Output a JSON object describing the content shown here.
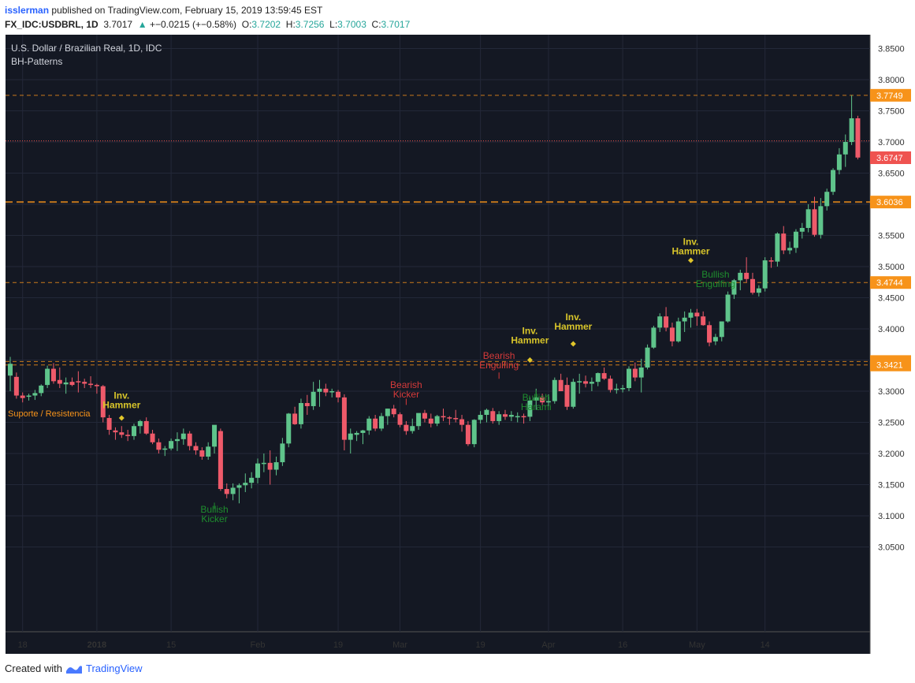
{
  "header": {
    "user": "isslerman",
    "published": "published on TradingView.com, February 15, 2019 13:59:45 EST",
    "symbol": "FX_IDC:USDBRL, 1D",
    "last": "3.7017",
    "change": "+−0.0215 (+−0.58%)",
    "o_label": "O:",
    "o": "3.7202",
    "h_label": "H:",
    "h": "3.7256",
    "l_label": "L:",
    "l": "3.7003",
    "c_label": "C:",
    "c": "3.7017"
  },
  "footer": {
    "created_with": "Created with",
    "brand": "TradingView"
  },
  "chart_data": {
    "type": "candlestick",
    "title": "U.S. Dollar / Brazilian Real, 1D, IDC",
    "subtitle": "BH-Patterns",
    "ylim": [
      3.03,
      3.86
    ],
    "yticks": [
      3.05,
      3.1,
      3.15,
      3.2,
      3.25,
      3.3,
      3.35,
      3.4,
      3.45,
      3.5,
      3.55,
      3.6,
      3.65,
      3.7,
      3.75,
      3.8,
      3.85
    ],
    "ytick_labels": [
      "3.0500",
      "3.1000",
      "3.1500",
      "3.2000",
      "3.2500",
      "3.3000",
      "3.3500",
      "3.4000",
      "3.4500",
      "3.5000",
      "3.5500",
      "3.6000",
      "3.6500",
      "3.7000",
      "3.7500",
      "3.8000",
      "3.8500"
    ],
    "xticks": [
      {
        "i": 2,
        "label": "18",
        "bold": false
      },
      {
        "i": 14,
        "label": "2018",
        "bold": true
      },
      {
        "i": 26,
        "label": "15",
        "bold": false
      },
      {
        "i": 40,
        "label": "Feb",
        "bold": false
      },
      {
        "i": 53,
        "label": "19",
        "bold": false
      },
      {
        "i": 63,
        "label": "Mar",
        "bold": false
      },
      {
        "i": 76,
        "label": "19",
        "bold": false
      },
      {
        "i": 87,
        "label": "Apr",
        "bold": false
      },
      {
        "i": 99,
        "label": "16",
        "bold": false
      },
      {
        "i": 111,
        "label": "May",
        "bold": false
      },
      {
        "i": 122,
        "label": "14",
        "bold": false
      }
    ],
    "price_lines": [
      {
        "value": 3.7749,
        "label": "3.7749",
        "style": "dashed",
        "color": "#f7931a"
      },
      {
        "value": 3.6036,
        "label": "3.6036",
        "style": "dashed-bold",
        "color": "#f7931a"
      },
      {
        "value": 3.4744,
        "label": "3.4744",
        "style": "dashed",
        "color": "#f7931a"
      },
      {
        "value": 3.3476,
        "label": "3.3476",
        "style": "dashed",
        "color": "#f7931a"
      },
      {
        "value": 3.3421,
        "label": "3.3421",
        "style": "dashed",
        "color": "#f7931a"
      },
      {
        "value": 3.7017,
        "label": "",
        "style": "dotted",
        "color": "#ef5350"
      },
      {
        "value": 3.6747,
        "label": "3.6747",
        "style": "none",
        "color": "#ef5350"
      }
    ],
    "sr_label": "Suporte / Resistencia",
    "annotations": [
      {
        "i": 18,
        "value": 3.288,
        "text": [
          "Inv.",
          "Hammer"
        ],
        "color": "#d8c52a",
        "marker": "diamond",
        "marker_value": 3.257
      },
      {
        "i": 33,
        "value": 3.105,
        "text": [
          "Bullish",
          "Kicker"
        ],
        "color": "#1e8e2e",
        "marker": "arrow-up",
        "marker_value": 3.116,
        "below": true
      },
      {
        "i": 64,
        "value": 3.305,
        "text": [
          "Bearish",
          "Kicker"
        ],
        "color": "#d53a3a",
        "marker": "arrow-down",
        "marker_value": 3.283
      },
      {
        "i": 79,
        "value": 3.352,
        "text": [
          "Bearish",
          "Engulfing"
        ],
        "color": "#d53a3a",
        "marker": "arrow-down",
        "marker_value": 3.325
      },
      {
        "i": 84,
        "value": 3.392,
        "text": [
          "Inv.",
          "Hammer"
        ],
        "color": "#d8c52a",
        "marker": "diamond",
        "marker_value": 3.35
      },
      {
        "i": 85,
        "value": 3.285,
        "text": [
          "Bullish",
          "Harami"
        ],
        "color": "#1e8e2e",
        "marker": "arrow-up",
        "marker_value": 3.296,
        "below": true
      },
      {
        "i": 91,
        "value": 3.414,
        "text": [
          "Inv.",
          "Hammer"
        ],
        "color": "#d8c52a",
        "marker": "diamond",
        "marker_value": 3.376
      },
      {
        "i": 110,
        "value": 3.535,
        "text": [
          "Inv.",
          "Hammer"
        ],
        "color": "#d8c52a",
        "marker": "diamond",
        "marker_value": 3.51
      },
      {
        "i": 114,
        "value": 3.482,
        "text": [
          "Bullish",
          "Engulfing"
        ],
        "color": "#1e8e2e",
        "marker": "none",
        "below": true
      }
    ],
    "candles": [
      [
        3.325,
        3.355,
        3.3,
        3.344
      ],
      [
        3.323,
        3.33,
        3.288,
        3.293
      ],
      [
        3.293,
        3.298,
        3.282,
        3.289
      ],
      [
        3.291,
        3.296,
        3.285,
        3.293
      ],
      [
        3.293,
        3.302,
        3.286,
        3.297
      ],
      [
        3.297,
        3.311,
        3.292,
        3.309
      ],
      [
        3.31,
        3.341,
        3.305,
        3.336
      ],
      [
        3.336,
        3.345,
        3.312,
        3.316
      ],
      [
        3.318,
        3.338,
        3.305,
        3.312
      ],
      [
        3.311,
        3.322,
        3.296,
        3.314
      ],
      [
        3.315,
        3.322,
        3.308,
        3.31
      ],
      [
        3.316,
        3.332,
        3.298,
        3.315
      ],
      [
        3.315,
        3.32,
        3.305,
        3.312
      ],
      [
        3.312,
        3.324,
        3.305,
        3.31
      ],
      [
        3.31,
        3.312,
        3.296,
        3.308
      ],
      [
        3.308,
        3.31,
        3.25,
        3.258
      ],
      [
        3.257,
        3.262,
        3.23,
        3.238
      ],
      [
        3.237,
        3.242,
        3.222,
        3.234
      ],
      [
        3.234,
        3.244,
        3.225,
        3.23
      ],
      [
        3.23,
        3.238,
        3.22,
        3.228
      ],
      [
        3.228,
        3.248,
        3.222,
        3.244
      ],
      [
        3.244,
        3.254,
        3.232,
        3.252
      ],
      [
        3.252,
        3.258,
        3.23,
        3.232
      ],
      [
        3.232,
        3.238,
        3.215,
        3.218
      ],
      [
        3.218,
        3.224,
        3.2,
        3.206
      ],
      [
        3.206,
        3.212,
        3.196,
        3.208
      ],
      [
        3.208,
        3.224,
        3.205,
        3.22
      ],
      [
        3.22,
        3.234,
        3.204,
        3.223
      ],
      [
        3.223,
        3.24,
        3.214,
        3.232
      ],
      [
        3.232,
        3.236,
        3.205,
        3.212
      ],
      [
        3.212,
        3.218,
        3.198,
        3.205
      ],
      [
        3.205,
        3.21,
        3.19,
        3.195
      ],
      [
        3.195,
        3.218,
        3.19,
        3.211
      ],
      [
        3.211,
        3.245,
        3.2,
        3.246
      ],
      [
        3.236,
        3.24,
        3.14,
        3.143
      ],
      [
        3.143,
        3.152,
        3.128,
        3.135
      ],
      [
        3.135,
        3.152,
        3.125,
        3.145
      ],
      [
        3.145,
        3.152,
        3.12,
        3.149
      ],
      [
        3.149,
        3.168,
        3.138,
        3.153
      ],
      [
        3.153,
        3.17,
        3.144,
        3.161
      ],
      [
        3.161,
        3.192,
        3.152,
        3.184
      ],
      [
        3.184,
        3.2,
        3.17,
        3.185
      ],
      [
        3.185,
        3.205,
        3.15,
        3.174
      ],
      [
        3.174,
        3.195,
        3.165,
        3.186
      ],
      [
        3.186,
        3.225,
        3.18,
        3.216
      ],
      [
        3.216,
        3.265,
        3.21,
        3.264
      ],
      [
        3.264,
        3.275,
        3.246,
        3.247
      ],
      [
        3.247,
        3.288,
        3.24,
        3.281
      ],
      [
        3.281,
        3.294,
        3.262,
        3.276
      ],
      [
        3.276,
        3.315,
        3.27,
        3.299
      ],
      [
        3.299,
        3.318,
        3.275,
        3.304
      ],
      [
        3.304,
        3.312,
        3.292,
        3.298
      ],
      [
        3.299,
        3.304,
        3.29,
        3.3
      ],
      [
        3.299,
        3.302,
        3.282,
        3.29
      ],
      [
        3.29,
        3.295,
        3.205,
        3.222
      ],
      [
        3.222,
        3.24,
        3.2,
        3.232
      ],
      [
        3.23,
        3.236,
        3.22,
        3.233
      ],
      [
        3.233,
        3.238,
        3.215,
        3.237
      ],
      [
        3.237,
        3.26,
        3.23,
        3.256
      ],
      [
        3.256,
        3.262,
        3.236,
        3.24
      ],
      [
        3.24,
        3.265,
        3.236,
        3.26
      ],
      [
        3.26,
        3.272,
        3.246,
        3.272
      ],
      [
        3.272,
        3.278,
        3.258,
        3.263
      ],
      [
        3.263,
        3.266,
        3.242,
        3.246
      ],
      [
        3.246,
        3.252,
        3.23,
        3.236
      ],
      [
        3.236,
        3.256,
        3.232,
        3.244
      ],
      [
        3.244,
        3.262,
        3.238,
        3.265
      ],
      [
        3.265,
        3.27,
        3.25,
        3.256
      ],
      [
        3.256,
        3.264,
        3.242,
        3.248
      ],
      [
        3.248,
        3.262,
        3.244,
        3.26
      ],
      [
        3.26,
        3.272,
        3.252,
        3.258
      ],
      [
        3.258,
        3.26,
        3.246,
        3.257
      ],
      [
        3.257,
        3.27,
        3.25,
        3.255
      ],
      [
        3.255,
        3.262,
        3.235,
        3.246
      ],
      [
        3.246,
        3.252,
        3.212,
        3.215
      ],
      [
        3.215,
        3.255,
        3.21,
        3.254
      ],
      [
        3.254,
        3.268,
        3.248,
        3.262
      ],
      [
        3.262,
        3.272,
        3.25,
        3.27
      ],
      [
        3.268,
        3.273,
        3.248,
        3.252
      ],
      [
        3.252,
        3.268,
        3.246,
        3.263
      ],
      [
        3.263,
        3.27,
        3.254,
        3.259
      ],
      [
        3.259,
        3.268,
        3.252,
        3.262
      ],
      [
        3.26,
        3.266,
        3.25,
        3.26
      ],
      [
        3.26,
        3.264,
        3.248,
        3.259
      ],
      [
        3.259,
        3.29,
        3.252,
        3.285
      ],
      [
        3.285,
        3.304,
        3.27,
        3.29
      ],
      [
        3.29,
        3.296,
        3.278,
        3.282
      ],
      [
        3.282,
        3.295,
        3.276,
        3.284
      ],
      [
        3.284,
        3.322,
        3.28,
        3.318
      ],
      [
        3.318,
        3.328,
        3.3,
        3.3
      ],
      [
        3.31,
        3.322,
        3.27,
        3.275
      ],
      [
        3.275,
        3.32,
        3.272,
        3.315
      ],
      [
        3.315,
        3.328,
        3.296,
        3.316
      ],
      [
        3.316,
        3.325,
        3.306,
        3.312
      ],
      [
        3.312,
        3.322,
        3.3,
        3.315
      ],
      [
        3.315,
        3.33,
        3.308,
        3.329
      ],
      [
        3.329,
        3.338,
        3.318,
        3.32
      ],
      [
        3.32,
        3.325,
        3.298,
        3.302
      ],
      [
        3.302,
        3.312,
        3.296,
        3.304
      ],
      [
        3.304,
        3.31,
        3.298,
        3.305
      ],
      [
        3.305,
        3.34,
        3.3,
        3.336
      ],
      [
        3.336,
        3.346,
        3.316,
        3.322
      ],
      [
        3.322,
        3.352,
        3.298,
        3.338
      ],
      [
        3.338,
        3.375,
        3.335,
        3.37
      ],
      [
        3.37,
        3.405,
        3.368,
        3.402
      ],
      [
        3.402,
        3.425,
        3.395,
        3.42
      ],
      [
        3.42,
        3.435,
        3.396,
        3.402
      ],
      [
        3.402,
        3.41,
        3.372,
        3.38
      ],
      [
        3.38,
        3.418,
        3.378,
        3.412
      ],
      [
        3.412,
        3.428,
        3.395,
        3.418
      ],
      [
        3.418,
        3.432,
        3.402,
        3.426
      ],
      [
        3.426,
        3.432,
        3.405,
        3.42
      ],
      [
        3.42,
        3.428,
        3.405,
        3.406
      ],
      [
        3.406,
        3.412,
        3.372,
        3.378
      ],
      [
        3.38,
        3.392,
        3.374,
        3.387
      ],
      [
        3.387,
        3.412,
        3.38,
        3.412
      ],
      [
        3.412,
        3.46,
        3.41,
        3.455
      ],
      [
        3.455,
        3.48,
        3.448,
        3.478
      ],
      [
        3.478,
        3.495,
        3.462,
        3.49
      ],
      [
        3.49,
        3.515,
        3.475,
        3.48
      ],
      [
        3.48,
        3.49,
        3.455,
        3.458
      ],
      [
        3.458,
        3.47,
        3.452,
        3.465
      ],
      [
        3.465,
        3.515,
        3.46,
        3.51
      ],
      [
        3.51,
        3.515,
        3.498,
        3.508
      ],
      [
        3.508,
        3.555,
        3.5,
        3.553
      ],
      [
        3.553,
        3.565,
        3.52,
        3.526
      ],
      [
        3.526,
        3.54,
        3.52,
        3.53
      ],
      [
        3.53,
        3.56,
        3.522,
        3.556
      ],
      [
        3.556,
        3.57,
        3.545,
        3.562
      ],
      [
        3.562,
        3.6,
        3.555,
        3.592
      ],
      [
        3.592,
        3.612,
        3.548,
        3.551
      ],
      [
        3.551,
        3.61,
        3.545,
        3.597
      ],
      [
        3.597,
        3.625,
        3.59,
        3.62
      ],
      [
        3.62,
        3.658,
        3.615,
        3.655
      ],
      [
        3.655,
        3.69,
        3.648,
        3.68
      ],
      [
        3.68,
        3.712,
        3.66,
        3.7
      ],
      [
        3.7,
        3.775,
        3.695,
        3.738
      ],
      [
        3.738,
        3.742,
        3.672,
        3.675
      ]
    ]
  }
}
